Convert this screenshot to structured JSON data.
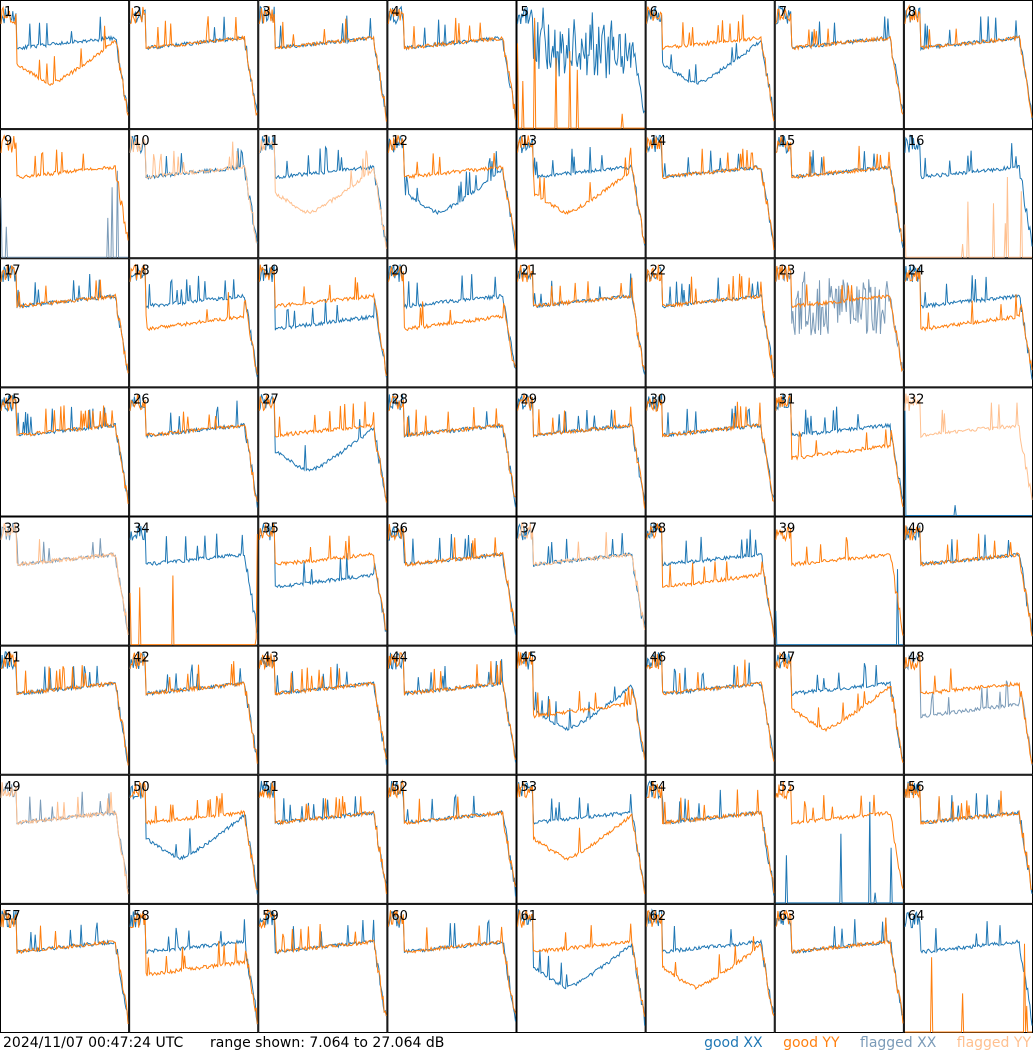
{
  "footer": {
    "timestamp": "2024/11/07 00:47:24 UTC",
    "range_text": "range shown: 7.064 to 27.064 dB"
  },
  "legend": {
    "good_xx": "good XX",
    "good_yy": "good YY",
    "flagged_xx": "flagged XX",
    "flagged_yy": "flagged YY"
  },
  "colors": {
    "good_xx": "#1f77b4",
    "good_yy": "#ff7f0e",
    "flagged_xx": "#7b9bb8",
    "flagged_yy": "#ffc08f"
  },
  "chart_data": {
    "type": "line",
    "layout": "8x8 small multiples",
    "ylim": [
      7.064,
      27.064
    ],
    "panels": [
      {
        "label": "1",
        "xx": "good",
        "yy": "good",
        "xx_shape": "flat",
        "yy_shape": "bowl"
      },
      {
        "label": "2",
        "xx": "good",
        "yy": "good",
        "xx_shape": "flat",
        "yy_shape": "flat"
      },
      {
        "label": "3",
        "xx": "good",
        "yy": "good",
        "xx_shape": "flat",
        "yy_shape": "flat"
      },
      {
        "label": "4",
        "xx": "good",
        "yy": "good",
        "xx_shape": "flat",
        "yy_shape": "flat"
      },
      {
        "label": "5",
        "xx": "good",
        "yy": "good",
        "xx_shape": "noisy",
        "yy_shape": "dead"
      },
      {
        "label": "6",
        "xx": "good",
        "yy": "good",
        "xx_shape": "bowl",
        "yy_shape": "flat"
      },
      {
        "label": "7",
        "xx": "good",
        "yy": "good",
        "xx_shape": "flat",
        "yy_shape": "flat"
      },
      {
        "label": "8",
        "xx": "good",
        "yy": "good",
        "xx_shape": "flat",
        "yy_shape": "flat"
      },
      {
        "label": "9",
        "xx": "flagged",
        "yy": "good",
        "xx_shape": "dead",
        "yy_shape": "flat"
      },
      {
        "label": "10",
        "xx": "good",
        "yy": "flagged",
        "xx_shape": "flat",
        "yy_shape": "flat"
      },
      {
        "label": "11",
        "xx": "good",
        "yy": "flagged",
        "xx_shape": "flat",
        "yy_shape": "bowl"
      },
      {
        "label": "12",
        "xx": "good",
        "yy": "good",
        "xx_shape": "bowl",
        "yy_shape": "flat"
      },
      {
        "label": "13",
        "xx": "good",
        "yy": "good",
        "xx_shape": "flat",
        "yy_shape": "bowl"
      },
      {
        "label": "14",
        "xx": "good",
        "yy": "good",
        "xx_shape": "flat",
        "yy_shape": "flat"
      },
      {
        "label": "15",
        "xx": "good",
        "yy": "good",
        "xx_shape": "flat",
        "yy_shape": "flat"
      },
      {
        "label": "16",
        "xx": "good",
        "yy": "flagged",
        "xx_shape": "flat",
        "yy_shape": "dead"
      },
      {
        "label": "17",
        "xx": "good",
        "yy": "good",
        "xx_shape": "flat",
        "yy_shape": "flat"
      },
      {
        "label": "18",
        "xx": "good",
        "yy": "good",
        "xx_shape": "flat",
        "yy_shape": "low"
      },
      {
        "label": "19",
        "xx": "good",
        "yy": "good",
        "xx_shape": "low",
        "yy_shape": "flat"
      },
      {
        "label": "20",
        "xx": "good",
        "yy": "good",
        "xx_shape": "flat",
        "yy_shape": "low"
      },
      {
        "label": "21",
        "xx": "good",
        "yy": "good",
        "xx_shape": "flat",
        "yy_shape": "flat"
      },
      {
        "label": "22",
        "xx": "good",
        "yy": "good",
        "xx_shape": "flat",
        "yy_shape": "flat"
      },
      {
        "label": "23",
        "xx": "flagged",
        "yy": "good",
        "xx_shape": "noisy",
        "yy_shape": "flat"
      },
      {
        "label": "24",
        "xx": "good",
        "yy": "good",
        "xx_shape": "flat",
        "yy_shape": "low"
      },
      {
        "label": "25",
        "xx": "good",
        "yy": "good",
        "xx_shape": "flat",
        "yy_shape": "flat"
      },
      {
        "label": "26",
        "xx": "good",
        "yy": "good",
        "xx_shape": "flat",
        "yy_shape": "flat"
      },
      {
        "label": "27",
        "xx": "good",
        "yy": "good",
        "xx_shape": "bowl",
        "yy_shape": "flat"
      },
      {
        "label": "28",
        "xx": "good",
        "yy": "good",
        "xx_shape": "flat",
        "yy_shape": "flat"
      },
      {
        "label": "29",
        "xx": "good",
        "yy": "good",
        "xx_shape": "flat",
        "yy_shape": "flat"
      },
      {
        "label": "30",
        "xx": "good",
        "yy": "good",
        "xx_shape": "flat",
        "yy_shape": "flat"
      },
      {
        "label": "31",
        "xx": "good",
        "yy": "good",
        "xx_shape": "flat",
        "yy_shape": "low"
      },
      {
        "label": "32",
        "xx": "good",
        "yy": "flagged",
        "xx_shape": "dead",
        "yy_shape": "flat"
      },
      {
        "label": "33",
        "xx": "flagged",
        "yy": "flagged",
        "xx_shape": "flat",
        "yy_shape": "flat"
      },
      {
        "label": "34",
        "xx": "good",
        "yy": "good",
        "xx_shape": "flat",
        "yy_shape": "dead"
      },
      {
        "label": "35",
        "xx": "good",
        "yy": "good",
        "xx_shape": "low",
        "yy_shape": "flat"
      },
      {
        "label": "36",
        "xx": "good",
        "yy": "good",
        "xx_shape": "flat",
        "yy_shape": "flat"
      },
      {
        "label": "37",
        "xx": "good",
        "yy": "flagged",
        "xx_shape": "flat",
        "yy_shape": "flat"
      },
      {
        "label": "38",
        "xx": "good",
        "yy": "good",
        "xx_shape": "flat",
        "yy_shape": "low"
      },
      {
        "label": "39",
        "xx": "good",
        "yy": "good",
        "xx_shape": "dead",
        "yy_shape": "flat"
      },
      {
        "label": "40",
        "xx": "good",
        "yy": "good",
        "xx_shape": "flat",
        "yy_shape": "flat"
      },
      {
        "label": "41",
        "xx": "good",
        "yy": "good",
        "xx_shape": "flat",
        "yy_shape": "flat"
      },
      {
        "label": "42",
        "xx": "good",
        "yy": "good",
        "xx_shape": "flat",
        "yy_shape": "flat"
      },
      {
        "label": "43",
        "xx": "good",
        "yy": "good",
        "xx_shape": "flat",
        "yy_shape": "flat"
      },
      {
        "label": "44",
        "xx": "good",
        "yy": "good",
        "xx_shape": "flat",
        "yy_shape": "flat"
      },
      {
        "label": "45",
        "xx": "good",
        "yy": "good",
        "xx_shape": "bowl",
        "yy_shape": "low"
      },
      {
        "label": "46",
        "xx": "good",
        "yy": "good",
        "xx_shape": "flat",
        "yy_shape": "flat"
      },
      {
        "label": "47",
        "xx": "good",
        "yy": "good",
        "xx_shape": "flat",
        "yy_shape": "bowl"
      },
      {
        "label": "48",
        "xx": "flagged",
        "yy": "good",
        "xx_shape": "low",
        "yy_shape": "flat"
      },
      {
        "label": "49",
        "xx": "flagged",
        "yy": "flagged",
        "xx_shape": "flat",
        "yy_shape": "flat"
      },
      {
        "label": "50",
        "xx": "good",
        "yy": "good",
        "xx_shape": "bowl",
        "yy_shape": "flat"
      },
      {
        "label": "51",
        "xx": "good",
        "yy": "good",
        "xx_shape": "flat",
        "yy_shape": "flat"
      },
      {
        "label": "52",
        "xx": "good",
        "yy": "good",
        "xx_shape": "flat",
        "yy_shape": "flat"
      },
      {
        "label": "53",
        "xx": "good",
        "yy": "good",
        "xx_shape": "flat",
        "yy_shape": "bowl"
      },
      {
        "label": "54",
        "xx": "good",
        "yy": "good",
        "xx_shape": "flat",
        "yy_shape": "flat"
      },
      {
        "label": "55",
        "xx": "good",
        "yy": "good",
        "xx_shape": "dead",
        "yy_shape": "flat"
      },
      {
        "label": "56",
        "xx": "good",
        "yy": "good",
        "xx_shape": "flat",
        "yy_shape": "flat"
      },
      {
        "label": "57",
        "xx": "good",
        "yy": "good",
        "xx_shape": "flat",
        "yy_shape": "flat"
      },
      {
        "label": "58",
        "xx": "good",
        "yy": "good",
        "xx_shape": "flat",
        "yy_shape": "low"
      },
      {
        "label": "59",
        "xx": "good",
        "yy": "good",
        "xx_shape": "flat",
        "yy_shape": "flat"
      },
      {
        "label": "60",
        "xx": "good",
        "yy": "good",
        "xx_shape": "flat",
        "yy_shape": "flat"
      },
      {
        "label": "61",
        "xx": "good",
        "yy": "good",
        "xx_shape": "bowl",
        "yy_shape": "flat"
      },
      {
        "label": "62",
        "xx": "good",
        "yy": "good",
        "xx_shape": "flat",
        "yy_shape": "bowl"
      },
      {
        "label": "63",
        "xx": "good",
        "yy": "good",
        "xx_shape": "flat",
        "yy_shape": "flat"
      },
      {
        "label": "64",
        "xx": "good",
        "yy": "good",
        "xx_shape": "flat",
        "yy_shape": "dead"
      }
    ]
  }
}
